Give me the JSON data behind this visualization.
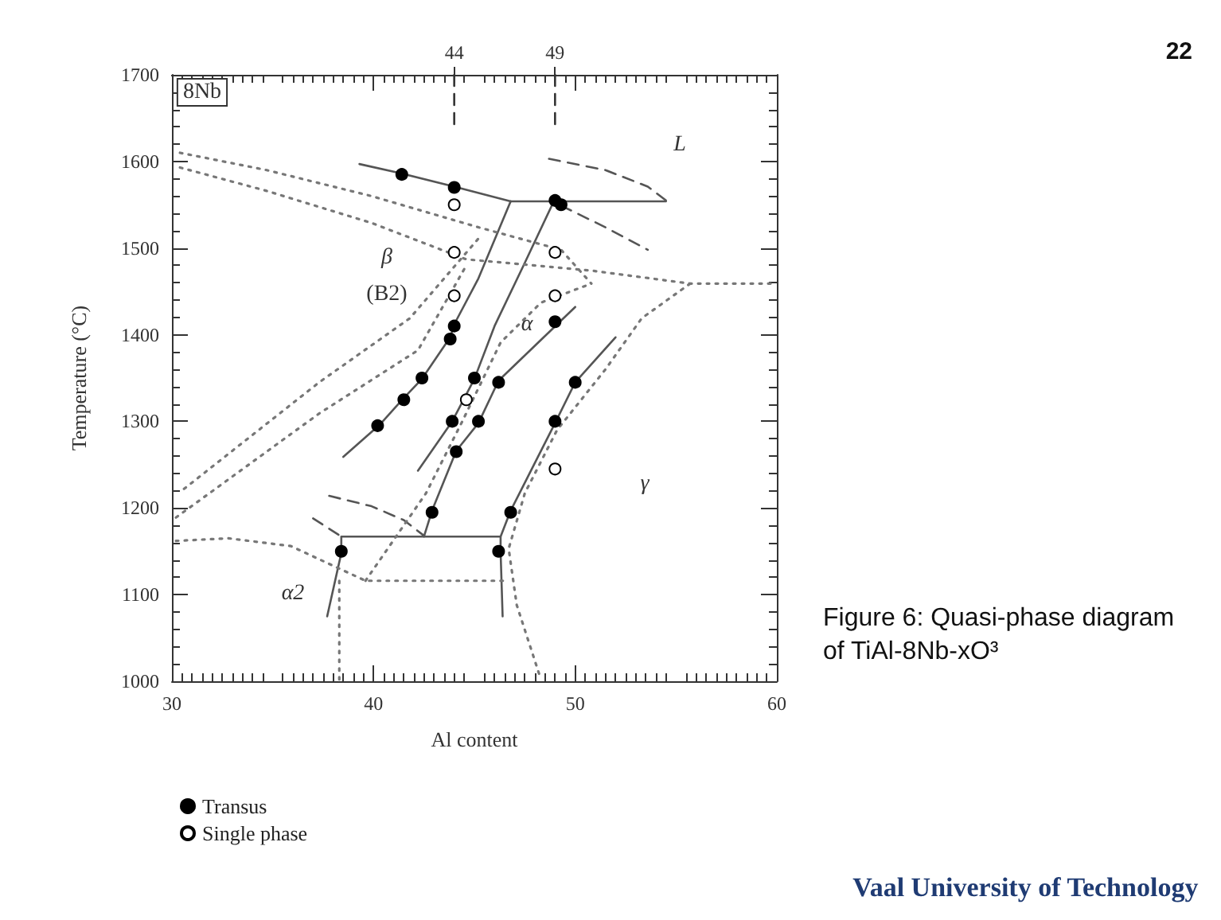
{
  "chart_data": {
    "type": "scatter",
    "xlabel": "Al content",
    "ylabel": "Temperature (°C)",
    "xlim": [
      30,
      60
    ],
    "xticks": [
      30,
      40,
      50,
      60
    ],
    "ylim": [
      1000,
      1700
    ],
    "yticks": [
      1000,
      1100,
      1200,
      1300,
      1400,
      1500,
      1600,
      1700
    ],
    "x2lim": [
      30,
      60
    ],
    "x2ticks": [
      44,
      49
    ],
    "legend": "bottom left",
    "marker": "circle",
    "series": [
      {
        "name": "Transus",
        "color": "#000000",
        "x": [
          41.4,
          44.0,
          49.0,
          49.3,
          44.0,
          43.8,
          42.4,
          41.5,
          40.2,
          45.0,
          46.2,
          43.9,
          45.2,
          44.1,
          49.0,
          50.0,
          49.0,
          42.9,
          46.8,
          38.4,
          46.2
        ],
        "values": [
          1585,
          1570,
          1555,
          1550,
          1410,
          1395,
          1350,
          1325,
          1295,
          1350,
          1345,
          1300,
          1300,
          1265,
          1415,
          1345,
          1300,
          1195,
          1195,
          1150,
          1150
        ]
      },
      {
        "name": "Single phase",
        "color": "#ffffff",
        "x": [
          44.0,
          44.0,
          49.0,
          44.0,
          49.0,
          44.6,
          49.0
        ],
        "values": [
          1550,
          1495,
          1495,
          1445,
          1445,
          1325,
          1245
        ]
      },
      {
        "type": "line",
        "marker": "none",
        "line_style": "solid",
        "color": "#555555",
        "x": [
          39.3,
          41.4,
          44.0,
          46.8,
          54.5
        ],
        "values": [
          1597,
          1586,
          1571,
          1554,
          1554
        ]
      },
      {
        "type": "line",
        "marker": "none",
        "line_style": "solid",
        "color": "#555555",
        "x": [
          46.8,
          45.2,
          44.0,
          43.8,
          42.4,
          41.5,
          40.3,
          38.5
        ],
        "values": [
          1554,
          1465,
          1412,
          1397,
          1349,
          1327,
          1296,
          1259
        ]
      },
      {
        "type": "line",
        "marker": "none",
        "line_style": "solid",
        "color": "#555555",
        "x": [
          49.0,
          47.5,
          46.0,
          45.0,
          43.9,
          42.2
        ],
        "values": [
          1557,
          1483,
          1410,
          1349,
          1300,
          1243
        ]
      },
      {
        "type": "line",
        "marker": "none",
        "line_style": "solid",
        "color": "#555555",
        "x": [
          50.0,
          46.2,
          45.2,
          44.1,
          42.9,
          42.5
        ],
        "values": [
          1432,
          1347,
          1298,
          1266,
          1197,
          1167
        ]
      },
      {
        "type": "line",
        "marker": "none",
        "line_style": "solid",
        "color": "#555555",
        "x": [
          52.0,
          50.0,
          49.0,
          46.8,
          46.3,
          46.3,
          46.4
        ],
        "values": [
          1397,
          1345,
          1298,
          1197,
          1167,
          1149,
          1075
        ]
      },
      {
        "type": "line",
        "marker": "none",
        "line_style": "solid",
        "color": "#555555",
        "x": [
          37.7,
          38.4,
          38.4,
          46.3
        ],
        "values": [
          1075,
          1148,
          1167,
          1167
        ]
      },
      {
        "type": "line",
        "marker": "none",
        "line_style": "dashed",
        "color": "#555555",
        "x": [
          48.7,
          51.5,
          53.6,
          54.5
        ],
        "values": [
          1603,
          1590,
          1571,
          1555
        ]
      },
      {
        "type": "line",
        "marker": "none",
        "line_style": "dashed",
        "color": "#555555",
        "x": [
          49.3,
          51.5,
          53.6
        ],
        "values": [
          1549,
          1524,
          1498
        ]
      },
      {
        "type": "line",
        "marker": "none",
        "line_style": "dashed",
        "color": "#555555",
        "x": [
          37.8,
          39.9,
          41.5,
          42.5
        ],
        "values": [
          1214,
          1202,
          1186,
          1168
        ]
      },
      {
        "type": "line",
        "marker": "none",
        "line_style": "dashed",
        "color": "#555555",
        "x": [
          37.0,
          38.4
        ],
        "values": [
          1188,
          1167
        ]
      },
      {
        "type": "line",
        "marker": "none",
        "line_style": "dashed",
        "color": "#333333",
        "x": [
          44,
          44
        ],
        "values": [
          1700,
          1640
        ]
      },
      {
        "type": "line",
        "marker": "none",
        "line_style": "dashed",
        "color": "#333333",
        "x": [
          49,
          49
        ],
        "values": [
          1700,
          1640
        ]
      },
      {
        "type": "line",
        "marker": "none",
        "line_style": "dotted",
        "color": "#777777",
        "x": [
          30.4,
          34.7,
          39.9,
          45.2,
          49.3,
          50.8
        ],
        "values": [
          1610,
          1590,
          1560,
          1524,
          1498,
          1459
        ]
      },
      {
        "type": "line",
        "marker": "none",
        "line_style": "dotted",
        "color": "#777777",
        "x": [
          30.4,
          34.7,
          39.9,
          44.6,
          50.8,
          55.7,
          60.0
        ],
        "values": [
          1593,
          1566,
          1529,
          1487,
          1474,
          1459,
          1459
        ]
      },
      {
        "type": "line",
        "marker": "none",
        "line_style": "dotted",
        "color": "#777777",
        "x": [
          55.7,
          53.3,
          51.5,
          49.1,
          47.5,
          46.7,
          47.1,
          48.3
        ],
        "values": [
          1459,
          1419,
          1360,
          1290,
          1217,
          1153,
          1088,
          1002
        ]
      },
      {
        "type": "line",
        "marker": "none",
        "line_style": "dotted",
        "color": "#777777",
        "x": [
          30.2,
          37.3,
          42.2,
          44.6
        ],
        "values": [
          1189,
          1309,
          1382,
          1480
        ]
      },
      {
        "type": "line",
        "marker": "none",
        "line_style": "dotted",
        "color": "#777777",
        "x": [
          30.6,
          37.3,
          41.8,
          45.2
        ],
        "values": [
          1222,
          1345,
          1419,
          1511
        ]
      },
      {
        "type": "line",
        "marker": "none",
        "line_style": "dotted",
        "color": "#777777",
        "x": [
          30.2,
          32.8,
          35.9,
          39.6,
          46.7
        ],
        "values": [
          1162,
          1165,
          1156,
          1116,
          1116
        ]
      },
      {
        "type": "line",
        "marker": "none",
        "line_style": "dotted",
        "color": "#777777",
        "x": [
          38.3,
          38.3
        ],
        "values": [
          1116,
          1002
        ]
      },
      {
        "type": "line",
        "marker": "none",
        "line_style": "dotted",
        "color": "#777777",
        "x": [
          39.6,
          42.6,
          44.4,
          46.3,
          48.3,
          50.8
        ],
        "values": [
          1116,
          1217,
          1300,
          1391,
          1437,
          1459
        ]
      }
    ],
    "annotations": [
      "8Nb",
      "β",
      "(B2)",
      "α",
      "L",
      "γ",
      "α2",
      "Figure 6: Quasi-phase diagram of TiAl-8Nb-xO³",
      "22",
      "Vaal University of Technology"
    ]
  }
}
